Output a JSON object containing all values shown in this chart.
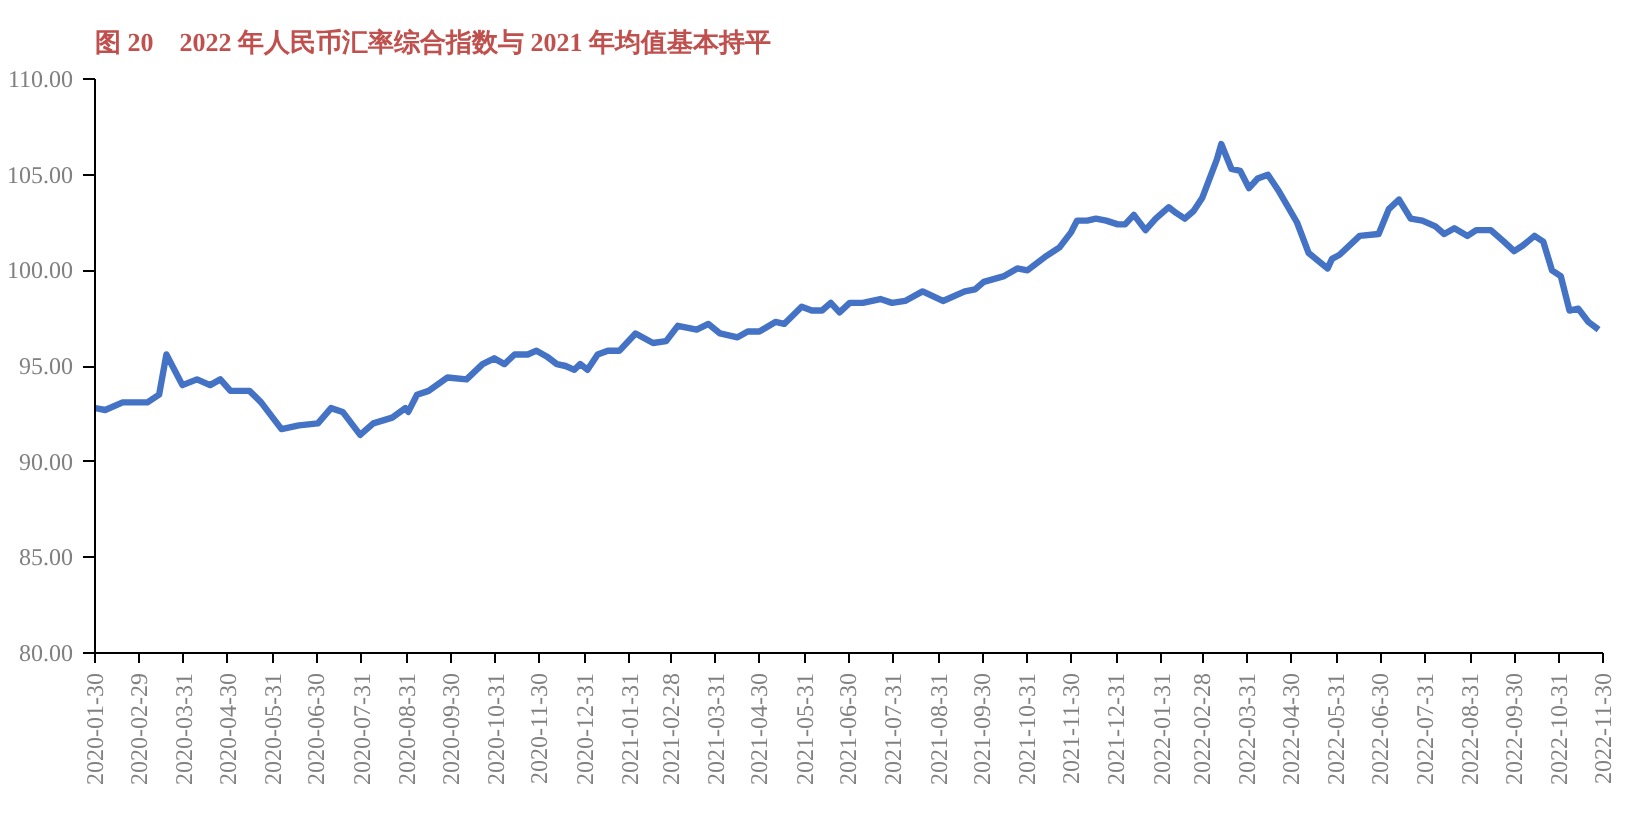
{
  "chart_data": {
    "type": "line",
    "title": "图 20　2022 年人民币汇率综合指数与 2021 年均值基本持平",
    "x": [
      "2020-01-30",
      "2020-02-06",
      "2020-02-18",
      "2020-03-06",
      "2020-03-14",
      "2020-03-19",
      "2020-03-30",
      "2020-04-09",
      "2020-04-18",
      "2020-04-25",
      "2020-05-02",
      "2020-05-15",
      "2020-05-23",
      "2020-06-06",
      "2020-06-18",
      "2020-07-01",
      "2020-07-10",
      "2020-07-18",
      "2020-07-30",
      "2020-08-08",
      "2020-08-21",
      "2020-08-30",
      "2020-09-01",
      "2020-09-07",
      "2020-09-15",
      "2020-09-28",
      "2020-10-11",
      "2020-10-22",
      "2020-10-30",
      "2020-11-06",
      "2020-11-13",
      "2020-11-22",
      "2020-11-28",
      "2020-12-05",
      "2020-12-12",
      "2020-12-18",
      "2020-12-24",
      "2020-12-28",
      "2021-01-02",
      "2021-01-09",
      "2021-01-16",
      "2021-01-24",
      "2021-02-04",
      "2021-02-16",
      "2021-02-25",
      "2021-03-05",
      "2021-03-18",
      "2021-03-26",
      "2021-04-03",
      "2021-04-15",
      "2021-04-22",
      "2021-04-30",
      "2021-05-11",
      "2021-05-17",
      "2021-05-29",
      "2021-06-05",
      "2021-06-12",
      "2021-06-18",
      "2021-06-24",
      "2021-07-01",
      "2021-07-10",
      "2021-07-22",
      "2021-07-30",
      "2021-08-08",
      "2021-08-20",
      "2021-09-03",
      "2021-09-18",
      "2021-09-25",
      "2021-10-01",
      "2021-10-15",
      "2021-10-24",
      "2021-10-31",
      "2021-11-12",
      "2021-11-22",
      "2021-11-30",
      "2021-12-04",
      "2021-12-11",
      "2021-12-17",
      "2021-12-24",
      "2022-01-01",
      "2022-01-06",
      "2022-01-12",
      "2022-01-20",
      "2022-01-27",
      "2022-02-05",
      "2022-02-10",
      "2022-02-16",
      "2022-02-22",
      "2022-02-28",
      "2022-03-04",
      "2022-03-10",
      "2022-03-13",
      "2022-03-20",
      "2022-03-26",
      "2022-04-01",
      "2022-04-07",
      "2022-04-14",
      "2022-04-21",
      "2022-05-04",
      "2022-05-12",
      "2022-05-25",
      "2022-05-28",
      "2022-06-02",
      "2022-06-16",
      "2022-06-29",
      "2022-07-06",
      "2022-07-13",
      "2022-07-21",
      "2022-07-29",
      "2022-08-07",
      "2022-08-13",
      "2022-08-20",
      "2022-08-29",
      "2022-09-04",
      "2022-09-14",
      "2022-09-23",
      "2022-09-30",
      "2022-10-06",
      "2022-10-14",
      "2022-10-20",
      "2022-10-26",
      "2022-11-01",
      "2022-11-07",
      "2022-11-13",
      "2022-11-20",
      "2022-11-27"
    ],
    "series": [
      {
        "color": "#4472c4",
        "values": [
          92.8,
          92.7,
          93.1,
          93.1,
          93.5,
          95.6,
          94.0,
          94.3,
          94.0,
          94.3,
          93.7,
          93.7,
          93.1,
          91.7,
          91.9,
          92.0,
          92.8,
          92.6,
          91.4,
          92.0,
          92.3,
          92.8,
          92.6,
          93.5,
          93.7,
          94.4,
          94.3,
          95.1,
          95.4,
          95.1,
          95.6,
          95.6,
          95.8,
          95.5,
          95.1,
          95.0,
          94.8,
          95.1,
          94.8,
          95.6,
          95.8,
          95.8,
          96.7,
          96.2,
          96.3,
          97.1,
          96.9,
          97.2,
          96.7,
          96.5,
          96.8,
          96.8,
          97.3,
          97.2,
          98.1,
          97.9,
          97.9,
          98.3,
          97.8,
          98.3,
          98.3,
          98.5,
          98.3,
          98.4,
          98.9,
          98.4,
          98.9,
          99.0,
          99.4,
          99.7,
          100.1,
          100.0,
          100.7,
          101.2,
          102.0,
          102.6,
          102.6,
          102.7,
          102.6,
          102.4,
          102.4,
          102.9,
          102.1,
          102.7,
          103.3,
          103.0,
          102.7,
          103.1,
          103.8,
          104.6,
          105.8,
          106.6,
          105.3,
          105.2,
          104.3,
          104.8,
          105.0,
          104.2,
          102.5,
          100.9,
          100.1,
          100.6,
          100.8,
          101.8,
          101.9,
          103.2,
          103.7,
          102.7,
          102.6,
          102.3,
          101.9,
          102.2,
          101.8,
          102.1,
          102.1,
          101.5,
          101.0,
          101.3,
          101.8,
          101.5,
          100.0,
          99.7,
          97.9,
          98.0,
          97.3,
          96.9
        ]
      }
    ],
    "xlim": [
      "2020-01-30",
      "2022-11-30"
    ],
    "xticks": [
      "2020-01-30",
      "2020-02-29",
      "2020-03-31",
      "2020-04-30",
      "2020-05-31",
      "2020-06-30",
      "2020-07-31",
      "2020-08-31",
      "2020-09-30",
      "2020-10-31",
      "2020-11-30",
      "2020-12-31",
      "2021-01-31",
      "2021-02-28",
      "2021-03-31",
      "2021-04-30",
      "2021-05-31",
      "2021-06-30",
      "2021-07-31",
      "2021-08-31",
      "2021-09-30",
      "2021-10-31",
      "2021-11-30",
      "2021-12-31",
      "2022-01-31",
      "2022-02-28",
      "2022-03-31",
      "2022-04-30",
      "2022-05-31",
      "2022-06-30",
      "2022-07-31",
      "2022-08-31",
      "2022-09-30",
      "2022-10-31",
      "2022-11-30"
    ],
    "ylim": [
      80,
      110
    ],
    "yticks": [
      {
        "value": 80,
        "label": "80.00"
      },
      {
        "value": 85,
        "label": "85.00"
      },
      {
        "value": 90,
        "label": "90.00"
      },
      {
        "value": 95,
        "label": "95.00"
      },
      {
        "value": 100,
        "label": "100.00"
      },
      {
        "value": 105,
        "label": "105.00"
      },
      {
        "value": 110,
        "label": "110.00"
      }
    ],
    "grid": false,
    "marker": "none",
    "line_style": "solid"
  }
}
